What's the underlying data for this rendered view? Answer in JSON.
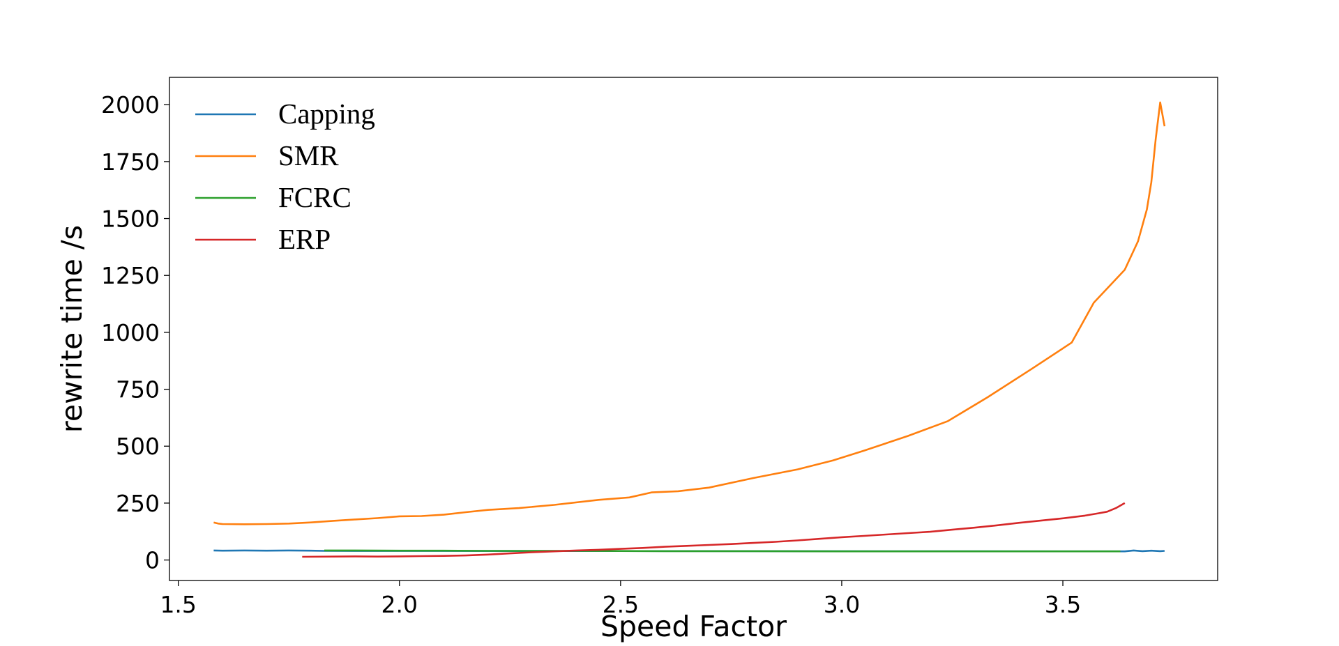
{
  "chart_data": {
    "type": "line",
    "title": "",
    "xlabel": "Speed Factor",
    "ylabel": "rewrite time /s",
    "xlim": [
      1.48,
      3.85
    ],
    "ylim": [
      -90,
      2120
    ],
    "xticks": [
      1.5,
      2.0,
      2.5,
      3.0,
      3.5
    ],
    "xtick_labels": [
      "1.5",
      "2.0",
      "2.5",
      "3.0",
      "3.5"
    ],
    "yticks": [
      0,
      250,
      500,
      750,
      1000,
      1250,
      1500,
      1750,
      2000
    ],
    "ytick_labels": [
      "0",
      "250",
      "500",
      "750",
      "1000",
      "1250",
      "1500",
      "1750",
      "2000"
    ],
    "grid": false,
    "legend_position": "top-left",
    "series": [
      {
        "name": "Capping",
        "color": "#1f77b4",
        "x": [
          1.58,
          1.6,
          1.65,
          1.7,
          1.75,
          1.8,
          1.83,
          3.64,
          3.66,
          3.68,
          3.7,
          3.72,
          3.73
        ],
        "y": [
          42,
          41,
          42,
          41,
          42,
          41,
          40,
          38,
          42,
          39,
          41,
          39,
          40
        ]
      },
      {
        "name": "SMR",
        "color": "#ff7f0e",
        "x": [
          1.58,
          1.59,
          1.6,
          1.65,
          1.7,
          1.75,
          1.8,
          1.85,
          1.9,
          1.95,
          2.0,
          2.05,
          2.1,
          2.15,
          2.2,
          2.27,
          2.35,
          2.45,
          2.52,
          2.57,
          2.63,
          2.7,
          2.8,
          2.9,
          2.98,
          3.05,
          3.15,
          3.24,
          3.33,
          3.43,
          3.52,
          3.57,
          3.64,
          3.67,
          3.69,
          3.7,
          3.71,
          3.72,
          3.73
        ],
        "y": [
          165,
          160,
          158,
          157,
          158,
          160,
          165,
          172,
          178,
          184,
          192,
          193,
          199,
          210,
          220,
          228,
          242,
          264,
          275,
          297,
          302,
          318,
          360,
          398,
          437,
          480,
          545,
          610,
          715,
          840,
          955,
          1130,
          1275,
          1400,
          1540,
          1660,
          1850,
          2010,
          1905
        ]
      },
      {
        "name": "FCRC",
        "color": "#2ca02c",
        "x": [
          1.83,
          1.9,
          2.0,
          2.1,
          2.2,
          2.4,
          2.6,
          2.8,
          3.0,
          3.2,
          3.4,
          3.63
        ],
        "y": [
          42,
          42,
          41,
          41,
          40,
          40,
          39,
          39,
          38,
          38,
          38,
          38
        ]
      },
      {
        "name": "ERP",
        "color": "#d62728",
        "x": [
          1.78,
          1.85,
          1.9,
          1.95,
          2.0,
          2.05,
          2.1,
          2.15,
          2.2,
          2.25,
          2.3,
          2.35,
          2.4,
          2.45,
          2.5,
          2.55,
          2.6,
          2.65,
          2.7,
          2.75,
          2.8,
          2.85,
          2.9,
          2.95,
          3.0,
          3.05,
          3.1,
          3.15,
          3.2,
          3.25,
          3.3,
          3.35,
          3.4,
          3.45,
          3.5,
          3.55,
          3.58,
          3.6,
          3.62,
          3.64
        ],
        "y": [
          14,
          15,
          16,
          15,
          16,
          17,
          18,
          20,
          24,
          29,
          34,
          38,
          42,
          45,
          49,
          53,
          58,
          62,
          66,
          70,
          75,
          80,
          86,
          93,
          100,
          106,
          112,
          118,
          124,
          133,
          142,
          152,
          163,
          173,
          183,
          195,
          205,
          212,
          228,
          250
        ]
      }
    ]
  }
}
